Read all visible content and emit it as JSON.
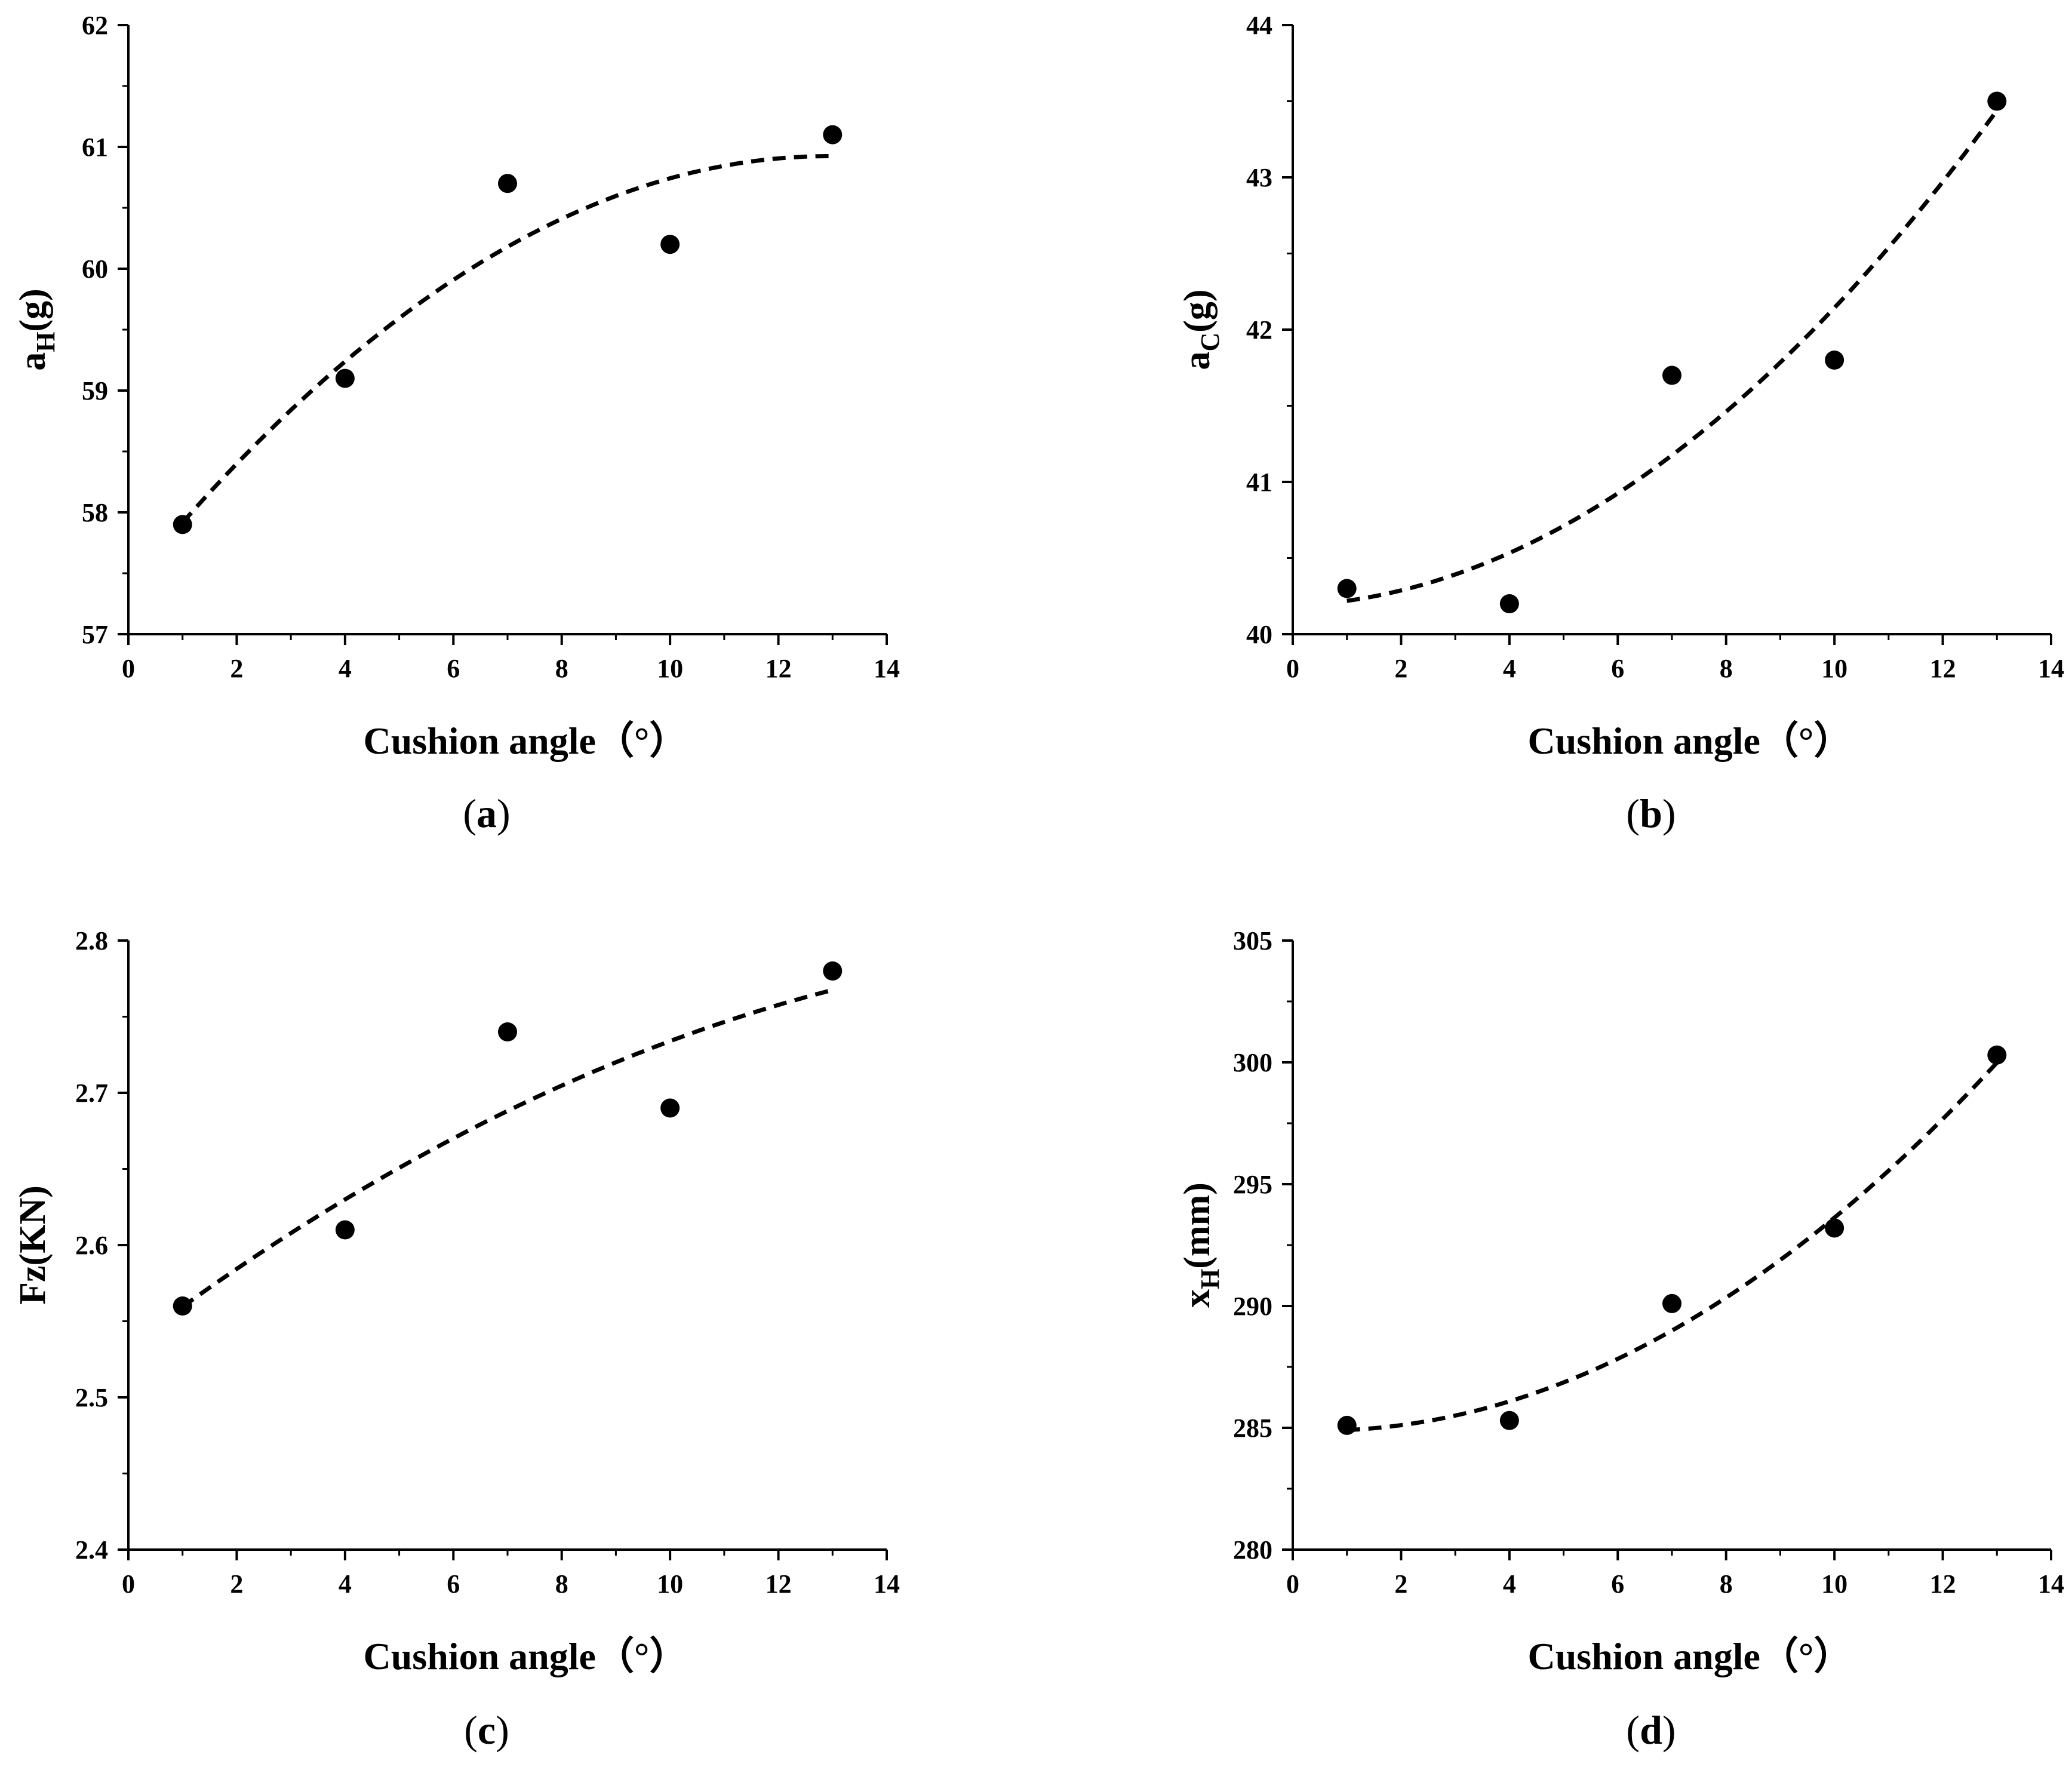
{
  "figure": {
    "panels": [
      {
        "panel": "(a)",
        "label_open": "(",
        "letter": "a",
        "label_close": ")"
      },
      {
        "panel": "(b)",
        "label_open": "(",
        "letter": "b",
        "label_close": ")"
      },
      {
        "panel": "(c)",
        "label_open": "(",
        "letter": "c",
        "label_close": ")"
      },
      {
        "panel": "(d)",
        "label_open": "(",
        "letter": "d",
        "label_close": ")"
      }
    ]
  },
  "chart_data": [
    {
      "type": "scatter",
      "id": "a",
      "title": "",
      "xlabel": "Cushion angle（°）",
      "ylabel": "a",
      "ylabel_sub": "H",
      "ylabel_suffix": "(g)",
      "xlim": [
        0,
        14
      ],
      "ylim": [
        57,
        62
      ],
      "x_ticks": [
        0,
        2,
        4,
        6,
        8,
        10,
        12,
        14
      ],
      "y_ticks": [
        57,
        58,
        59,
        60,
        61,
        62
      ],
      "x": [
        1,
        4,
        7,
        10,
        13
      ],
      "y": [
        57.9,
        59.1,
        60.7,
        60.2,
        61.1
      ],
      "fit": {
        "style": "dashed",
        "kind": "quadratic",
        "x": [
          1,
          4,
          7,
          10,
          13
        ],
        "y": [
          57.92,
          59.23,
          60.18,
          60.75,
          60.92
        ]
      }
    },
    {
      "type": "scatter",
      "id": "b",
      "title": "",
      "xlabel": "Cushion angle（°）",
      "ylabel": "a",
      "ylabel_sub": "C",
      "ylabel_suffix": "(g)",
      "xlim": [
        0,
        14
      ],
      "ylim": [
        40,
        44
      ],
      "x_ticks": [
        0,
        2,
        4,
        6,
        8,
        10,
        12,
        14
      ],
      "y_ticks": [
        40,
        41,
        42,
        43,
        44
      ],
      "x": [
        1,
        4,
        7,
        10,
        13
      ],
      "y": [
        40.3,
        40.2,
        41.7,
        41.8,
        43.5
      ],
      "fit": {
        "style": "dashed",
        "kind": "quadratic",
        "x": [
          1,
          4,
          7,
          10,
          13
        ],
        "y": [
          40.21,
          40.55,
          41.18,
          42.12,
          43.45
        ]
      }
    },
    {
      "type": "scatter",
      "id": "c",
      "title": "",
      "xlabel": "Cushion angle（°）",
      "ylabel": "Fz(KN)",
      "ylabel_sub": "",
      "ylabel_suffix": "",
      "xlim": [
        0,
        14
      ],
      "ylim": [
        2.4,
        2.8
      ],
      "x_ticks": [
        0,
        2,
        4,
        6,
        8,
        10,
        12,
        14
      ],
      "y_ticks": [
        2.4,
        2.5,
        2.6,
        2.7,
        2.8
      ],
      "y_tick_labels": [
        "2.4",
        "2.5",
        "2.6",
        "2.7",
        "2.8"
      ],
      "x": [
        1,
        4,
        7,
        10,
        13
      ],
      "y": [
        2.56,
        2.61,
        2.74,
        2.69,
        2.78
      ],
      "fit": {
        "style": "dashed",
        "kind": "quadratic",
        "x": [
          1,
          4,
          7,
          10,
          13
        ],
        "y": [
          2.56,
          2.629,
          2.688,
          2.735,
          2.767
        ]
      }
    },
    {
      "type": "scatter",
      "id": "d",
      "title": "",
      "xlabel": "Cushion angle（°）",
      "ylabel": "x",
      "ylabel_sub": "H",
      "ylabel_suffix": "(mm)",
      "xlim": [
        0,
        14
      ],
      "ylim": [
        280,
        305
      ],
      "x_ticks": [
        0,
        2,
        4,
        6,
        8,
        10,
        12,
        14
      ],
      "y_ticks": [
        280,
        285,
        290,
        295,
        300,
        305
      ],
      "x": [
        1,
        4,
        7,
        10,
        13
      ],
      "y": [
        285.1,
        285.3,
        290.1,
        293.2,
        300.3
      ],
      "fit": {
        "style": "dashed",
        "kind": "quadratic",
        "x": [
          1,
          4,
          7,
          10,
          13
        ],
        "y": [
          284.9,
          286.1,
          289.0,
          293.6,
          300.0
        ]
      }
    }
  ]
}
